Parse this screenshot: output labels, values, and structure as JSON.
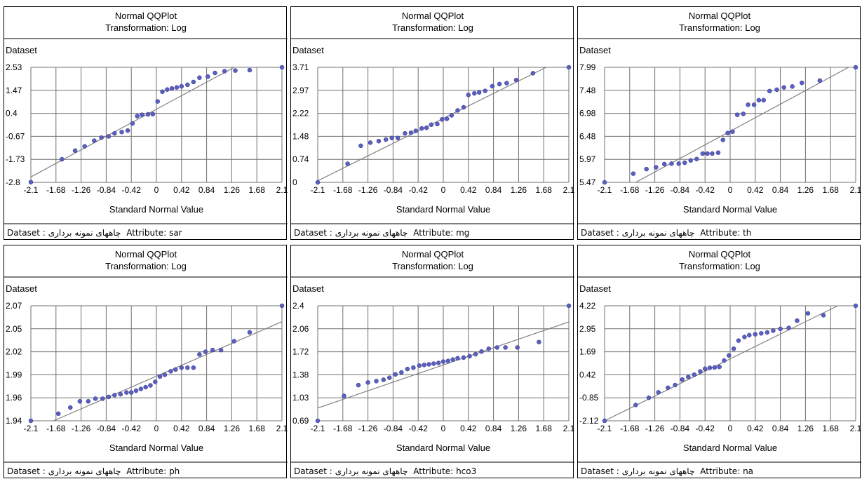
{
  "labels": {
    "dataset_prefix": "Dataset :",
    "dataset_name": "چاههای نمونه برداری",
    "attribute_prefix": "Attribute:"
  },
  "colors": {
    "point": "#5a5fc0",
    "point_stroke": "#303080",
    "line": "#808080",
    "grid": "#707070",
    "highlight_grid": "#c8c8c8"
  },
  "chart_data": [
    {
      "type": "scatter",
      "title": "Normal QQPlot",
      "subtitle": "Transformation: Log",
      "xlabel": "Standard Normal Value",
      "ylabel": "Dataset",
      "attribute": "sar",
      "xlim": [
        -2.1,
        2.1
      ],
      "ylim": [
        -2.8,
        2.53
      ],
      "xticks": [
        "-2.1",
        "-1.68",
        "-1.26",
        "-0.84",
        "-0.42",
        "0",
        "0.42",
        "0.84",
        "1.26",
        "1.68",
        "2.1"
      ],
      "yticks": [
        "2.53",
        "1.47",
        "0.4",
        "-0.67",
        "-1.73",
        "-2.8"
      ],
      "line": [
        [
          -2.1,
          -2.55
        ],
        [
          1.3,
          2.53
        ]
      ],
      "x": [
        -2.1,
        -1.58,
        -1.36,
        -1.2,
        -1.04,
        -0.92,
        -0.8,
        -0.7,
        -0.58,
        -0.48,
        -0.4,
        -0.32,
        -0.24,
        -0.14,
        -0.06,
        0.02,
        0.1,
        0.18,
        0.26,
        0.34,
        0.42,
        0.52,
        0.62,
        0.72,
        0.86,
        0.98,
        1.14,
        1.32,
        1.56,
        2.1
      ],
      "y": [
        -2.79,
        -1.73,
        -1.33,
        -1.13,
        -0.87,
        -0.73,
        -0.67,
        -0.53,
        -0.47,
        -0.4,
        -0.07,
        0.27,
        0.33,
        0.35,
        0.36,
        0.95,
        1.4,
        1.5,
        1.55,
        1.6,
        1.65,
        1.72,
        1.85,
        2.05,
        2.1,
        2.27,
        2.35,
        2.38,
        2.4,
        2.53
      ]
    },
    {
      "type": "scatter",
      "title": "Normal QQPlot",
      "subtitle": "Transformation: Log",
      "xlabel": "Standard Normal Value",
      "ylabel": "Dataset",
      "attribute": "mg",
      "xlim": [
        -2.1,
        2.1
      ],
      "ylim": [
        0,
        3.71
      ],
      "xticks": [
        "-2.1",
        "-1.68",
        "-1.26",
        "-0.84",
        "-0.42",
        "0",
        "0.42",
        "0.84",
        "1.26",
        "1.68",
        "2.1"
      ],
      "yticks": [
        "3.71",
        "2.97",
        "2.22",
        "1.48",
        "0.74",
        "0"
      ],
      "line": [
        [
          -2.1,
          0.05
        ],
        [
          1.72,
          3.71
        ]
      ],
      "x": [
        -2.1,
        -1.6,
        -1.38,
        -1.22,
        -1.08,
        -0.96,
        -0.86,
        -0.76,
        -0.64,
        -0.54,
        -0.46,
        -0.36,
        -0.28,
        -0.2,
        -0.1,
        -0.02,
        0.06,
        0.14,
        0.24,
        0.34,
        0.42,
        0.52,
        0.6,
        0.7,
        0.82,
        0.94,
        1.06,
        1.22,
        1.5,
        2.1
      ],
      "y": [
        0.0,
        0.6,
        1.18,
        1.28,
        1.33,
        1.38,
        1.43,
        1.43,
        1.58,
        1.6,
        1.66,
        1.74,
        1.76,
        1.86,
        1.88,
        2.03,
        2.05,
        2.16,
        2.32,
        2.42,
        2.82,
        2.87,
        2.9,
        2.95,
        3.1,
        3.17,
        3.2,
        3.3,
        3.52,
        3.71
      ]
    },
    {
      "type": "scatter",
      "title": "Normal QQPlot",
      "subtitle": "Transformation: Log",
      "xlabel": "Standard Normal Value",
      "ylabel": "Dataset",
      "attribute": "th",
      "xlim": [
        -2.1,
        2.1
      ],
      "ylim": [
        5.47,
        7.99
      ],
      "xticks": [
        "-2.1",
        "-1.68",
        "-1.26",
        "-0.84",
        "-0.42",
        "0",
        "0.42",
        "0.84",
        "1.26",
        "1.68",
        "2.1"
      ],
      "yticks": [
        "7.99",
        "7.48",
        "6.98",
        "6.48",
        "5.97",
        "5.47"
      ],
      "line": [
        [
          -1.58,
          5.47
        ],
        [
          1.98,
          7.99
        ]
      ],
      "x": [
        -2.1,
        -1.62,
        -1.4,
        -1.24,
        -1.1,
        -0.98,
        -0.86,
        -0.76,
        -0.66,
        -0.56,
        -0.46,
        -0.38,
        -0.3,
        -0.2,
        -0.12,
        -0.04,
        0.04,
        0.12,
        0.22,
        0.3,
        0.4,
        0.48,
        0.56,
        0.66,
        0.78,
        0.9,
        1.04,
        1.2,
        1.5,
        2.1
      ],
      "y": [
        5.47,
        5.66,
        5.76,
        5.8,
        5.87,
        5.88,
        5.88,
        5.9,
        5.95,
        5.98,
        6.1,
        6.1,
        6.1,
        6.12,
        6.4,
        6.55,
        6.58,
        6.95,
        6.97,
        7.17,
        7.17,
        7.27,
        7.27,
        7.47,
        7.5,
        7.55,
        7.57,
        7.65,
        7.7,
        7.99
      ]
    },
    {
      "type": "scatter",
      "title": "Normal QQPlot",
      "subtitle": "Transformation: Log",
      "xlabel": "Standard Normal Value",
      "ylabel": "Dataset",
      "attribute": "ph",
      "xlim": [
        -2.1,
        2.1
      ],
      "ylim": [
        1.94,
        2.07
      ],
      "xticks": [
        "-2.1",
        "-1.68",
        "-1.26",
        "-0.84",
        "-0.42",
        "0",
        "0.42",
        "0.84",
        "1.26",
        "1.68",
        "2.1"
      ],
      "yticks": [
        "2.07",
        "2.05",
        "2.02",
        "1.99",
        "1.96",
        "1.94"
      ],
      "line": [
        [
          -1.72,
          1.94
        ],
        [
          2.1,
          2.052
        ]
      ],
      "x": [
        -2.1,
        -1.64,
        -1.44,
        -1.28,
        -1.14,
        -1.02,
        -0.9,
        -0.8,
        -0.7,
        -0.6,
        -0.5,
        -0.42,
        -0.34,
        -0.26,
        -0.18,
        -0.1,
        -0.02,
        0.06,
        0.14,
        0.24,
        0.32,
        0.42,
        0.52,
        0.62,
        0.72,
        0.82,
        0.94,
        1.08,
        1.3,
        1.56,
        2.1
      ],
      "y": [
        1.94,
        1.948,
        1.955,
        1.962,
        1.962,
        1.965,
        1.965,
        1.967,
        1.969,
        1.97,
        1.972,
        1.972,
        1.974,
        1.976,
        1.978,
        1.98,
        1.984,
        1.99,
        1.992,
        1.996,
        1.998,
        2.0,
        2.0,
        2.0,
        2.015,
        2.018,
        2.02,
        2.02,
        2.03,
        2.04,
        2.07
      ]
    },
    {
      "type": "scatter",
      "title": "Normal QQPlot",
      "subtitle": "Transformation: Log",
      "xlabel": "Standard Normal Value",
      "ylabel": "Dataset",
      "attribute": "hco3",
      "xlim": [
        -2.1,
        2.1
      ],
      "ylim": [
        0.69,
        2.4
      ],
      "xticks": [
        "-2.1",
        "-1.68",
        "-1.26",
        "-0.84",
        "-0.42",
        "0",
        "0.42",
        "0.84",
        "1.26",
        "1.68",
        "2.1"
      ],
      "yticks": [
        "2.4",
        "2.06",
        "1.72",
        "1.38",
        "1.03",
        "0.69"
      ],
      "line": [
        [
          -2.1,
          0.88
        ],
        [
          2.1,
          2.16
        ]
      ],
      "x": [
        -2.1,
        -1.66,
        -1.42,
        -1.26,
        -1.12,
        -1.0,
        -0.9,
        -0.8,
        -0.7,
        -0.6,
        -0.5,
        -0.4,
        -0.32,
        -0.24,
        -0.16,
        -0.08,
        0.0,
        0.08,
        0.16,
        0.24,
        0.34,
        0.44,
        0.54,
        0.64,
        0.76,
        0.9,
        1.04,
        1.24,
        1.6,
        2.1
      ],
      "y": [
        0.69,
        1.06,
        1.22,
        1.26,
        1.28,
        1.3,
        1.33,
        1.38,
        1.41,
        1.46,
        1.48,
        1.51,
        1.52,
        1.53,
        1.54,
        1.55,
        1.57,
        1.58,
        1.6,
        1.62,
        1.63,
        1.65,
        1.68,
        1.72,
        1.76,
        1.78,
        1.78,
        1.78,
        1.86,
        2.4
      ]
    },
    {
      "type": "scatter",
      "title": "Normal QQPlot",
      "subtitle": "Transformation: Log",
      "xlabel": "Standard Normal Value",
      "ylabel": "Dataset",
      "attribute": "na",
      "xlim": [
        -2.1,
        2.1
      ],
      "ylim": [
        -2.12,
        4.22
      ],
      "xticks": [
        "-2.1",
        "-1.68",
        "-1.26",
        "-0.84",
        "-0.42",
        "0",
        "0.42",
        "0.84",
        "1.26",
        "1.68",
        "2.1"
      ],
      "yticks": [
        "4.22",
        "2.95",
        "1.69",
        "0.42",
        "-0.85",
        "-2.12"
      ],
      "line": [
        [
          -2.1,
          -2.12
        ],
        [
          1.8,
          4.22
        ]
      ],
      "x": [
        -2.1,
        -1.58,
        -1.36,
        -1.2,
        -1.04,
        -0.92,
        -0.8,
        -0.7,
        -0.6,
        -0.5,
        -0.42,
        -0.34,
        -0.26,
        -0.18,
        -0.1,
        -0.02,
        0.06,
        0.14,
        0.24,
        0.32,
        0.42,
        0.52,
        0.62,
        0.72,
        0.84,
        0.98,
        1.12,
        1.3,
        1.56,
        2.1
      ],
      "y": [
        -2.12,
        -1.25,
        -0.85,
        -0.55,
        -0.3,
        -0.15,
        0.15,
        0.3,
        0.42,
        0.6,
        0.75,
        0.8,
        0.82,
        0.85,
        1.2,
        1.48,
        1.85,
        2.3,
        2.5,
        2.6,
        2.65,
        2.7,
        2.75,
        2.85,
        2.95,
        3.0,
        3.4,
        3.8,
        3.7,
        4.22
      ]
    }
  ]
}
